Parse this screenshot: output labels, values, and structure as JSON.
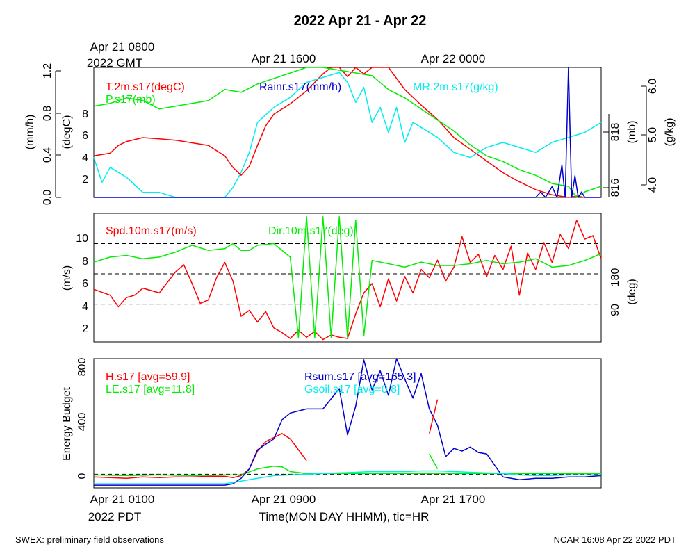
{
  "page": {
    "title": "2022 Apr 21 - Apr 22",
    "top_left_time": "Apr 21 0800",
    "top_left_tz": "2022 GMT",
    "top_times": [
      "Apr 21 1600",
      "Apr 22 0000"
    ],
    "bottom_times": [
      "Apr 21 0100",
      "Apr 21 0900",
      "Apr 21 1700"
    ],
    "bottom_tz": "2022 PDT",
    "x_title": "Time(MON DAY HHMM), tic=HR",
    "footer_left": "SWEX: preliminary field observations",
    "footer_right": "NCAR 16:08 Apr 22 2022 PDT"
  },
  "colors": {
    "red": "#ff0000",
    "green": "#00ee00",
    "blue": "#0000cc",
    "cyan": "#00eeee",
    "black": "#000000"
  },
  "chart_data": [
    {
      "type": "line",
      "x_unit": "hours since Apr 21 0100 PDT",
      "xlim": [
        0,
        31
      ],
      "axes": {
        "rain": {
          "label": "(mm/h)",
          "ticks": [
            "0.0",
            "0.4",
            "0.8",
            "1.2"
          ],
          "ylim": [
            0,
            1.2
          ]
        },
        "temp": {
          "label": "(degC)",
          "ticks": [
            "2",
            "4",
            "6",
            "8"
          ],
          "ylim": [
            0,
            10
          ]
        },
        "pres": {
          "label": "(mb)",
          "ticks": [
            "816",
            "818"
          ],
          "ylim": [
            815.8,
            820.5
          ]
        },
        "mr": {
          "label": "(g/kg)",
          "ticks": [
            "4.0",
            "5.0",
            "6.0"
          ],
          "ylim": [
            3.8,
            6.4
          ]
        }
      },
      "series": [
        {
          "name": "T.2m.s17(degC)",
          "color": "red",
          "axis": "temp",
          "x": [
            0,
            1,
            1.5,
            2,
            3,
            4,
            5,
            6,
            7,
            8,
            8.5,
            9,
            9.5,
            10,
            10.5,
            11,
            12,
            13,
            14,
            14.5,
            15,
            15.5,
            16,
            16.5,
            17,
            17.5,
            18,
            19,
            20,
            21,
            22,
            23,
            24,
            25,
            26,
            27,
            28,
            29,
            29.5,
            30
          ],
          "y": [
            3.2,
            3.4,
            4.0,
            4.3,
            4.6,
            4.5,
            4.4,
            4.2,
            4.0,
            3.2,
            2.3,
            1.7,
            2.4,
            4.0,
            5.5,
            6.4,
            7.2,
            8.2,
            9.5,
            10.0,
            10.6,
            9.3,
            11.0,
            9.5,
            10.3,
            11.5,
            10.0,
            8.3,
            7.1,
            6.0,
            4.6,
            3.7,
            2.8,
            1.9,
            1.2,
            0.6,
            0.2,
            0.0,
            0.1,
            0.0
          ]
        },
        {
          "name": "P.s17(mb)",
          "color": "green",
          "axis": "pres",
          "x": [
            0,
            1,
            2,
            3,
            4,
            5,
            6,
            7,
            8,
            9,
            10,
            11,
            12,
            13,
            14,
            15,
            16,
            17,
            18,
            19,
            20,
            21,
            22,
            23,
            24,
            25,
            26,
            27,
            28,
            29,
            29.5,
            30,
            31
          ],
          "y": [
            819.1,
            819.2,
            819.4,
            819.3,
            819.0,
            819.1,
            819.2,
            819.3,
            819.7,
            819.6,
            819.9,
            820.1,
            820.3,
            820.5,
            820.6,
            820.4,
            820.3,
            820.2,
            819.7,
            819.4,
            819.0,
            818.6,
            818.2,
            817.7,
            817.3,
            817.1,
            816.8,
            816.6,
            816.3,
            816.2,
            815.8,
            816.0,
            816.2
          ]
        },
        {
          "name": "MR.2m.s17(g/kg)",
          "color": "cyan",
          "axis": "mr",
          "x": [
            0,
            0.5,
            1,
            2,
            3,
            4,
            5,
            6,
            7,
            8,
            8.5,
            9,
            9.5,
            10,
            11,
            12,
            13,
            14,
            15,
            15.5,
            16,
            16.5,
            17,
            17.5,
            18,
            18.5,
            19,
            19.5,
            20,
            21,
            22,
            23,
            24,
            25,
            26,
            27,
            28,
            29,
            30,
            31
          ],
          "y": [
            4.6,
            4.1,
            4.4,
            4.2,
            3.9,
            3.9,
            3.8,
            3.8,
            3.8,
            3.8,
            4.0,
            4.3,
            4.7,
            5.3,
            5.6,
            5.8,
            6.1,
            6.2,
            6.3,
            6.1,
            5.7,
            6.0,
            5.3,
            5.6,
            5.1,
            5.6,
            4.9,
            5.3,
            5.2,
            5.0,
            4.7,
            4.6,
            4.8,
            4.9,
            4.8,
            4.7,
            4.9,
            5.0,
            5.1,
            5.3
          ]
        },
        {
          "name": "Rainr.s17(mm/h)",
          "color": "blue",
          "axis": "rain",
          "x": [
            0,
            27,
            27.3,
            27.6,
            28,
            28.3,
            28.6,
            28.8,
            29,
            29.2,
            29.4,
            29.6,
            29.8,
            30,
            31
          ],
          "y": [
            0,
            0,
            0.05,
            0,
            0.1,
            0,
            0.3,
            0,
            1.3,
            0,
            0.2,
            0,
            0.05,
            0,
            0
          ]
        }
      ]
    },
    {
      "type": "line",
      "x_unit": "hours since Apr 21 0100 PDT",
      "xlim": [
        0,
        31
      ],
      "axes": {
        "spd": {
          "label": "(m/s)",
          "ticks": [
            "2",
            "4",
            "6",
            "8",
            "10"
          ],
          "ylim": [
            1,
            12
          ]
        },
        "dir": {
          "label": "(deg)",
          "ticks": [
            "90",
            "180"
          ],
          "ylim": [
            -22.5,
            360
          ]
        }
      },
      "reference_lines_deg": [
        90,
        180,
        270
      ],
      "series": [
        {
          "name": "Spd.10m.s17(m/s)",
          "color": "red",
          "axis": "spd",
          "x": [
            0,
            1,
            1.5,
            2,
            2.5,
            3,
            4,
            5,
            5.5,
            6,
            6.5,
            7,
            7.5,
            8,
            8.5,
            9,
            9.5,
            10,
            10.5,
            11,
            11.5,
            12,
            12.5,
            13,
            13.5,
            14,
            14.5,
            15,
            15.5,
            16,
            16.5,
            17,
            17.5,
            18,
            18.5,
            19,
            19.5,
            20,
            20.5,
            21,
            21.5,
            22,
            22.5,
            23,
            23.5,
            24,
            24.5,
            25,
            25.5,
            26,
            26.5,
            27,
            27.5,
            28,
            28.5,
            29,
            29.5,
            30,
            30.5,
            31
          ],
          "y": [
            5.5,
            5.0,
            4.0,
            4.8,
            5.0,
            5.6,
            5.2,
            7.0,
            7.6,
            6.0,
            4.3,
            4.6,
            6.5,
            7.8,
            6.2,
            3.2,
            3.7,
            2.7,
            3.6,
            2.2,
            1.8,
            1.3,
            2.0,
            1.4,
            1.9,
            1.2,
            1.6,
            1.4,
            1.3,
            3.4,
            5.2,
            6.0,
            4.0,
            6.4,
            4.5,
            6.6,
            5.2,
            7.2,
            6.5,
            8.0,
            6.2,
            7.4,
            10.0,
            7.8,
            8.5,
            6.6,
            8.4,
            7.2,
            9.2,
            5.0,
            8.6,
            7.2,
            9.5,
            7.8,
            10.2,
            9.0,
            11.4,
            9.8,
            10.1,
            8.1
          ]
        },
        {
          "name": "Dir.10m.s17(deg)",
          "color": "green",
          "axis": "dir",
          "x": [
            0,
            1,
            2,
            3,
            4,
            5,
            6,
            7,
            8,
            8.5,
            9,
            9.5,
            10,
            11,
            12,
            12.5,
            13,
            13.5,
            14,
            14.5,
            15,
            15.5,
            16,
            16.5,
            17,
            18,
            19,
            20,
            21,
            22,
            23,
            24,
            25,
            26,
            27,
            28,
            29,
            30,
            31
          ],
          "y": [
            215,
            230,
            235,
            225,
            230,
            245,
            265,
            250,
            255,
            270,
            250,
            250,
            265,
            270,
            230,
            -10,
            350,
            -10,
            350,
            -10,
            350,
            -10,
            340,
            -5,
            220,
            210,
            200,
            215,
            205,
            205,
            210,
            220,
            210,
            215,
            225,
            200,
            205,
            220,
            240
          ]
        }
      ]
    },
    {
      "type": "line",
      "x_unit": "hours since Apr 21 0100 PDT",
      "xlim": [
        0,
        31
      ],
      "axes": {
        "energy": {
          "label": "Energy Budget",
          "ticks": [
            "0",
            "400",
            "800"
          ],
          "ylim": [
            -100,
            850
          ]
        }
      },
      "reference_lines": [
        0
      ],
      "series": [
        {
          "name": "H.s17 [avg=59.9]",
          "color": "red",
          "axis": "energy",
          "x": [
            0,
            1,
            2,
            3,
            4,
            5,
            6,
            7,
            8,
            8.5,
            9,
            9.5,
            10,
            10.5,
            11,
            11.5,
            12,
            12.5,
            13
          ],
          "y": [
            -20,
            -25,
            -30,
            -20,
            -25,
            -20,
            -20,
            -15,
            -15,
            -25,
            -10,
            40,
            170,
            240,
            270,
            300,
            260,
            180,
            100
          ]
        },
        {
          "name": "LE.s17 [avg=11.8]",
          "color": "green",
          "axis": "energy",
          "x": [
            0,
            2,
            4,
            6,
            8,
            9,
            10,
            11,
            11.5,
            12,
            13,
            14,
            31
          ],
          "y": [
            -5,
            -10,
            -5,
            -10,
            -5,
            -5,
            40,
            60,
            55,
            20,
            5,
            5,
            5
          ]
        },
        {
          "name": "Rsum.s17 [avg=165.3]",
          "color": "blue",
          "axis": "energy",
          "x": [
            0,
            8,
            8.5,
            9,
            9.5,
            10,
            10.5,
            11,
            11.5,
            12,
            13,
            14,
            15,
            15.5,
            16,
            16.5,
            17,
            17.5,
            18,
            18.5,
            19,
            19.5,
            20,
            20.5,
            21,
            21.5,
            22,
            22.5,
            23,
            23.5,
            24,
            25,
            26,
            27,
            28,
            29,
            30,
            31
          ],
          "y": [
            -80,
            -80,
            -70,
            -30,
            40,
            180,
            220,
            260,
            400,
            450,
            480,
            480,
            630,
            290,
            500,
            840,
            620,
            760,
            580,
            860,
            700,
            560,
            740,
            480,
            360,
            130,
            190,
            170,
            200,
            160,
            150,
            -20,
            -40,
            -30,
            -30,
            -20,
            -20,
            -10
          ]
        },
        {
          "name": "Gsoil.s17 [avg=0.8]",
          "color": "cyan",
          "axis": "energy",
          "x": [
            0,
            8,
            9,
            10,
            11,
            12,
            13,
            14,
            15,
            16,
            17,
            18,
            19,
            20,
            21,
            22,
            23,
            24,
            25,
            26,
            27,
            28,
            29,
            30,
            31
          ],
          "y": [
            -70,
            -70,
            -50,
            -30,
            -10,
            -5,
            0,
            5,
            10,
            15,
            20,
            20,
            20,
            25,
            25,
            20,
            15,
            10,
            5,
            -5,
            -10,
            -10,
            -5,
            -5,
            -5
          ]
        },
        {
          "name": "H.s17 (segment)",
          "color": "red",
          "axis": "energy",
          "x": [
            20.5,
            21
          ],
          "y": [
            300,
            550
          ]
        },
        {
          "name": "LE.s17 (segment)",
          "color": "green",
          "axis": "energy",
          "x": [
            20.5,
            21
          ],
          "y": [
            150,
            40
          ]
        }
      ]
    }
  ]
}
